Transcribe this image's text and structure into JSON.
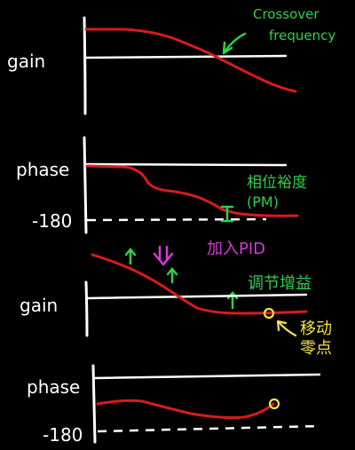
{
  "top_plot": {
    "gain_label": "gain",
    "phase_label": "phase",
    "phase_tick": "-180",
    "crossover_label_line1": "Crossover",
    "crossover_label_line2": "frequency",
    "pm_label_line1": "相位裕度",
    "pm_label_line2": "(PM)"
  },
  "middle": {
    "add_pid_label": "加入PID",
    "tune_gain_label": "调节增益"
  },
  "bottom_plot": {
    "gain_label": "gain",
    "phase_label": "phase",
    "phase_tick": "-180",
    "move_zero_line1": "移动",
    "move_zero_line2": "零点"
  },
  "colors": {
    "background": "#000000",
    "axis": "#ffffff",
    "curve": "#d61c1c",
    "annotation_green": "#2fd04a",
    "annotation_yellow": "#f3e34a",
    "annotation_magenta": "#d53bd6"
  }
}
